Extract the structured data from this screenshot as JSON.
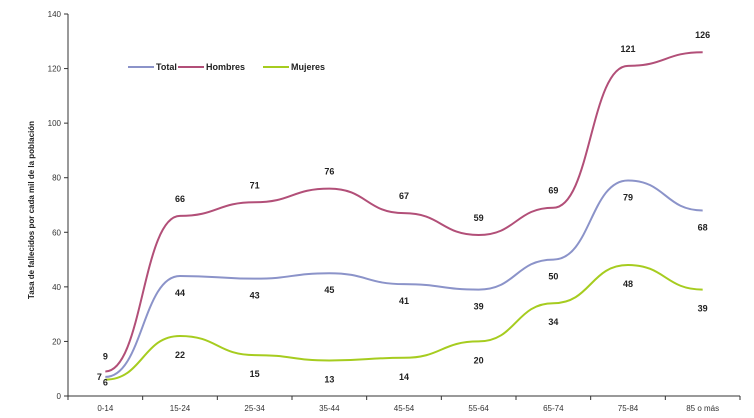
{
  "chart_data": {
    "type": "line",
    "title": "",
    "xlabel": "",
    "ylabel": "Tasa de fallecidos por cada mil de la población",
    "categories": [
      "0-14",
      "15-24",
      "25-34",
      "35-44",
      "45-54",
      "55-64",
      "65-74",
      "75-84",
      "85 o más"
    ],
    "ylim": [
      0,
      140
    ],
    "yticks": [
      0,
      20,
      40,
      60,
      80,
      100,
      120,
      140
    ],
    "grid": false,
    "legend": "top-left",
    "series": [
      {
        "name": "Total",
        "color": "#8b93c9",
        "values": [
          7,
          44,
          43,
          45,
          41,
          39,
          50,
          79,
          68
        ]
      },
      {
        "name": "Hombres",
        "color": "#b24f78",
        "values": [
          9,
          66,
          71,
          76,
          67,
          59,
          69,
          121,
          126
        ]
      },
      {
        "name": "Mujeres",
        "color": "#a6cc1f",
        "values": [
          6,
          22,
          15,
          13,
          14,
          20,
          34,
          48,
          39
        ]
      }
    ]
  }
}
